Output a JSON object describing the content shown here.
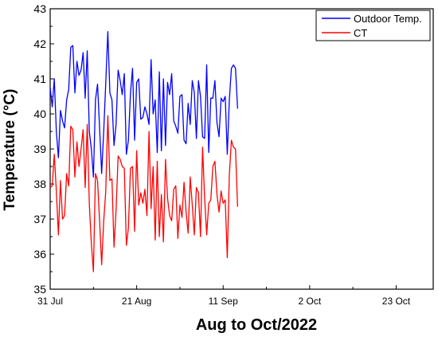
{
  "chart_data": {
    "type": "line",
    "title": "",
    "xlabel": "Aug to Oct/2022",
    "ylabel": "Temperature (°C)",
    "ylim": [
      35,
      43
    ],
    "yticks": [
      "35",
      "36",
      "37",
      "38",
      "39",
      "40",
      "41",
      "42",
      "43"
    ],
    "xlim": [
      "2022-07-31",
      "2022-11-01"
    ],
    "xticks": [
      {
        "date": "2022-07-31",
        "label": "31 Jul"
      },
      {
        "date": "2022-08-21",
        "label": "21 Aug"
      },
      {
        "date": "2022-09-11",
        "label": "11 Sep"
      },
      {
        "date": "2022-10-02",
        "label": "2 Oct"
      },
      {
        "date": "2022-10-23",
        "label": "23 Oct"
      }
    ],
    "x_start": "2022-07-31",
    "x_step_days": 0.5,
    "legend": {
      "position": "top-right"
    },
    "grid": false,
    "series": [
      {
        "name": "Outdoor Temp.",
        "color": "#0000ff",
        "values": [
          40.75,
          40.2,
          41.0,
          39.5,
          38.75,
          40.1,
          39.8,
          39.6,
          40.4,
          40.7,
          41.9,
          41.95,
          40.6,
          41.5,
          41.1,
          41.25,
          41.75,
          40.45,
          41.8,
          39.5,
          39.0,
          38.2,
          40.4,
          40.85,
          39.6,
          38.3,
          39.5,
          40.9,
          42.35,
          40.6,
          40.4,
          39.1,
          39.7,
          41.25,
          40.95,
          40.55,
          41.15,
          38.85,
          39.25,
          40.6,
          41.3,
          39.25,
          40.9,
          41.0,
          39.85,
          39.9,
          40.2,
          40.0,
          39.7,
          41.55,
          40.0,
          40.4,
          38.9,
          41.2,
          38.95,
          41.0,
          39.1,
          40.9,
          40.55,
          41.15,
          39.8,
          39.65,
          39.45,
          40.5,
          40.55,
          39.25,
          39.15,
          40.3,
          39.7,
          40.95,
          40.6,
          39.3,
          40.95,
          40.5,
          39.35,
          39.3,
          41.4,
          38.9,
          40.45,
          40.45,
          40.95,
          39.75,
          39.35,
          40.45,
          40.35,
          40.5,
          38.85,
          40.4,
          41.3,
          41.4,
          41.3,
          40.15
        ]
      },
      {
        "name": "CT",
        "color": "#ff0000",
        "values": [
          37.9,
          37.95,
          38.85,
          37.8,
          36.55,
          38.1,
          37.0,
          37.1,
          38.3,
          37.95,
          39.65,
          39.55,
          38.2,
          39.2,
          38.5,
          39.0,
          39.55,
          37.9,
          39.7,
          37.45,
          36.3,
          35.5,
          38.3,
          38.1,
          36.95,
          35.7,
          36.95,
          37.8,
          39.95,
          38.1,
          38.15,
          36.2,
          37.25,
          38.8,
          38.7,
          38.5,
          38.45,
          36.25,
          36.75,
          38.45,
          38.5,
          36.65,
          38.95,
          37.4,
          37.75,
          37.45,
          37.85,
          37.1,
          39.5,
          37.3,
          38.5,
          36.4,
          38.65,
          36.5,
          37.7,
          36.35,
          38.7,
          37.6,
          37.1,
          36.95,
          37.85,
          37.95,
          36.45,
          37.4,
          37.05,
          38.05,
          37.2,
          36.6,
          38.2,
          37.4,
          36.55,
          37.9,
          37.75,
          36.5,
          39.05,
          37.6,
          36.55,
          37.45,
          37.55,
          38.5,
          38.65,
          37.7,
          37.2,
          37.8,
          37.45,
          37.55,
          35.9,
          38.25,
          39.25,
          39.05,
          39.0,
          37.35
        ]
      }
    ]
  }
}
